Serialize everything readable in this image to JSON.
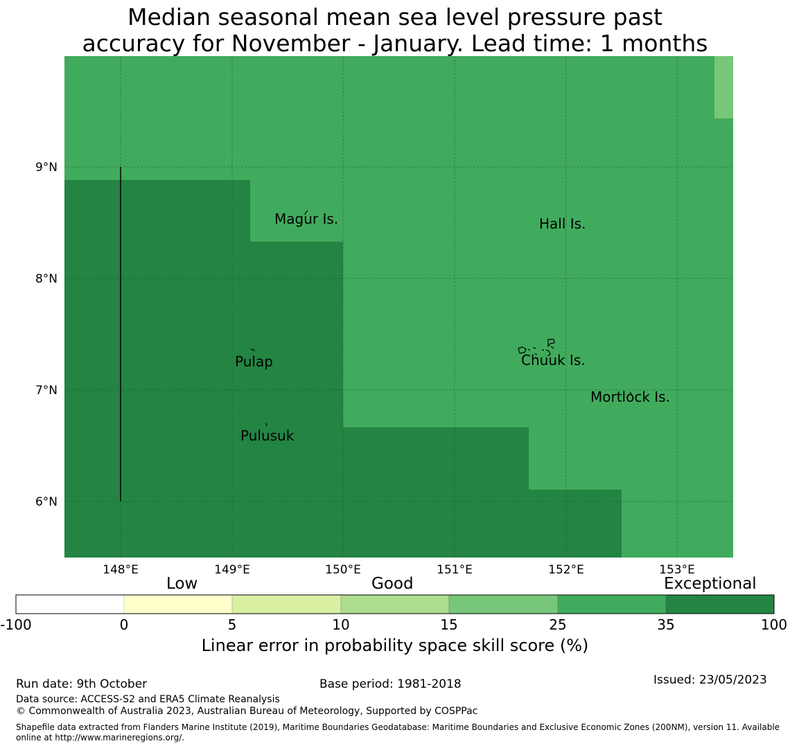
{
  "title": {
    "line1": "Median seasonal mean sea level pressure past",
    "line2": "accuracy for November - January. Lead time: 1 months"
  },
  "map": {
    "lat_ticks": [
      "9°N",
      "8°N",
      "7°N",
      "6°N"
    ],
    "lon_ticks": [
      "148°E",
      "149°E",
      "150°E",
      "151°E",
      "152°E",
      "153°E"
    ],
    "islands": [
      "Magur Is.",
      "Hall Is.",
      "Pulap",
      "Chuuk Is.",
      "Mortlock Is.",
      "Pulusuk"
    ],
    "colors": {
      "good": "#41ab5d",
      "exceptional": "#238443",
      "light": "#78c679"
    }
  },
  "colorbar": {
    "categories": [
      "Low",
      "Good",
      "Exceptional"
    ],
    "ticks": [
      "-100",
      "0",
      "5",
      "10",
      "15",
      "25",
      "35",
      "100"
    ],
    "colors": [
      "#ffffff",
      "#ffffcc",
      "#d9f0a3",
      "#addd8e",
      "#78c679",
      "#41ab5d",
      "#238443"
    ],
    "label": "Linear error in probability space skill score (%)"
  },
  "footer": {
    "run_date": "Run date: 9th October",
    "base_period": "Base period: 1981-2018",
    "issued": "Issued: 23/05/2023",
    "data_source": "Data source: ACCESS-S2 and ERA5 Climate Reanalysis",
    "copyright": "© Commonwealth of Australia 2023, Australian Bureau of Meteorology, Supported by COSPPac",
    "shapefile": "Shapefile data extracted from Flanders Marine Institute (2019), Maritime Boundaries Geodatabase: Maritime Boundaries and Exclusive Economic Zones (200NM), version 11. Available online at http://www.marineregions.org/."
  }
}
